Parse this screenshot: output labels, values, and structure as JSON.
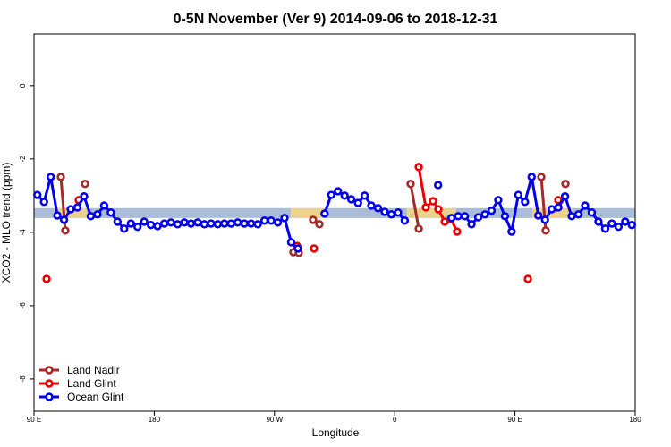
{
  "chart_data": {
    "type": "line",
    "title": "0-5N November (Ver 9)   2014-09-06 to 2018-12-31",
    "x_label": "Longitude",
    "y_label": "XCO2 - MLO trend (ppm)",
    "xlim": [
      90,
      540
    ],
    "ylim": [
      -8.88,
      1.41
    ],
    "xticks": [
      {
        "value": 90,
        "label": "90 E"
      },
      180,
      {
        "value": 270,
        "label": "90 W"
      },
      {
        "value": 360,
        "label": "0"
      },
      {
        "value": 450,
        "label": "90 E"
      },
      {
        "value": 540,
        "label": "180"
      }
    ],
    "yticks": [
      0,
      -2,
      -4,
      -6,
      -8
    ],
    "band": [
      -3.61,
      -3.34
    ],
    "band_color": "#a9bdd9",
    "band_highlights": [
      [
        105,
        131
      ],
      [
        282,
        309
      ],
      [
        369,
        406
      ],
      [
        463,
        493
      ]
    ],
    "highlight_color": "#f7d77f",
    "legend": "bottom-left",
    "series": [
      {
        "name": "Land Nadir",
        "color": "#a52a2a",
        "x": [
          110.1,
          113.4,
          null,
          128.2,
          null,
          284.2,
          288.2,
          null,
          298.9,
          303.6,
          null,
          371.9,
          378.0,
          null,
          469.7,
          473.0,
          null,
          487.8
        ],
        "values": [
          -2.49,
          -3.95,
          null,
          -2.68,
          null,
          -4.54,
          -4.56,
          null,
          -3.66,
          -3.78,
          null,
          -2.68,
          -3.9,
          null,
          -2.49,
          -3.95,
          null,
          -2.68
        ]
      },
      {
        "name": "Land Glint",
        "color": "#ee0000",
        "x": [
          99.4,
          null,
          123.5,
          null,
          286.9,
          null,
          299.6,
          null,
          378.0,
          383.3,
          388.7,
          392.7,
          397.4,
          402.1,
          406.7,
          null,
          459.7,
          null,
          482.4
        ],
        "values": [
          -5.27,
          null,
          -3.12,
          null,
          -4.37,
          null,
          -4.44,
          null,
          -2.22,
          -3.32,
          -3.15,
          -3.37,
          -3.71,
          -3.63,
          -3.98,
          null,
          -5.27,
          null,
          -3.12
        ]
      },
      {
        "name": "Ocean Glint",
        "color": "#0000ee",
        "x": [
          92.5,
          97.5,
          102.5,
          107.5,
          112.5,
          117.5,
          122.5,
          127.5,
          132.5,
          137.5,
          142.5,
          147.5,
          152.5,
          157.5,
          162.5,
          167.5,
          172.5,
          177.5,
          182.5,
          187.5,
          192.5,
          197.5,
          202.5,
          207.5,
          212.5,
          217.5,
          222.5,
          227.5,
          232.5,
          237.5,
          242.5,
          247.5,
          252.5,
          257.5,
          262.5,
          267.5,
          272.5,
          277.5,
          282.5,
          287.5,
          null,
          307.5,
          312.5,
          317.5,
          322.5,
          327.5,
          332.5,
          337.5,
          342.5,
          347.5,
          352.5,
          357.5,
          362.5,
          367.5,
          null,
          392.5,
          null,
          402.5,
          407.5,
          412.5,
          417.5,
          422.5,
          427.5,
          432.5,
          437.5,
          442.5,
          447.5,
          452.5,
          457.5,
          462.5,
          467.5,
          472.5,
          477.5,
          482.5,
          487.5,
          492.5,
          497.5,
          502.5,
          507.5,
          512.5,
          517.5,
          522.5,
          527.5,
          532.5,
          537.5
        ],
        "values": [
          -2.98,
          -3.17,
          -2.49,
          -3.54,
          -3.66,
          -3.37,
          -3.32,
          -3.02,
          -3.56,
          -3.51,
          -3.27,
          -3.46,
          -3.71,
          -3.9,
          -3.76,
          -3.85,
          -3.71,
          -3.8,
          -3.83,
          -3.76,
          -3.73,
          -3.78,
          -3.73,
          -3.76,
          -3.73,
          -3.78,
          -3.76,
          -3.78,
          -3.76,
          -3.76,
          -3.73,
          -3.76,
          -3.76,
          -3.78,
          -3.68,
          -3.68,
          -3.73,
          -3.61,
          -4.27,
          -4.44,
          null,
          -3.49,
          -2.98,
          -2.88,
          -3.0,
          -3.1,
          -3.2,
          -3.0,
          -3.27,
          -3.34,
          -3.44,
          -3.51,
          -3.46,
          -3.68,
          null,
          -2.71,
          null,
          -3.61,
          -3.56,
          -3.56,
          -3.78,
          -3.59,
          -3.51,
          -3.41,
          -3.12,
          -3.56,
          -3.98,
          -2.98,
          -3.17,
          -2.49,
          -3.54,
          -3.66,
          -3.37,
          -3.32,
          -3.02,
          -3.56,
          -3.51,
          -3.27,
          -3.46,
          -3.71,
          -3.9,
          -3.76,
          -3.85,
          -3.71,
          -3.8
        ]
      }
    ]
  }
}
